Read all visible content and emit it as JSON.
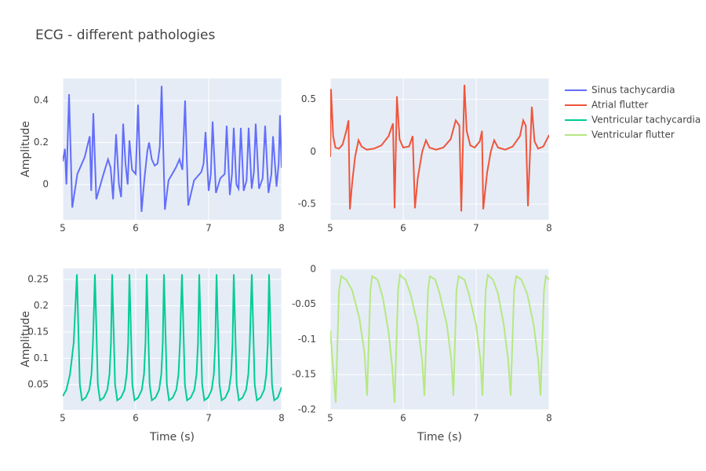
{
  "title": "ECG - different pathologies",
  "legend": "right",
  "chart_data": [
    {
      "type": "line",
      "y_label": "Amplitude",
      "xlim": [
        5,
        8
      ],
      "xticks": [
        5,
        6,
        7,
        8
      ],
      "ylim": [
        -0.168,
        0.505
      ],
      "yticks": [
        0,
        0.2,
        0.4
      ],
      "grid": true,
      "series": [
        {
          "name": "Sinus tachycardia",
          "color": "#636efa",
          "x": [
            5.0,
            5.03,
            5.05,
            5.086,
            5.13,
            5.2,
            5.3,
            5.37,
            5.39,
            5.419,
            5.46,
            5.55,
            5.62,
            5.656,
            5.69,
            5.731,
            5.77,
            5.8,
            5.828,
            5.86,
            5.89,
            5.914,
            5.95,
            6.0,
            6.032,
            6.08,
            6.12,
            6.16,
            6.183,
            6.22,
            6.26,
            6.3,
            6.33,
            6.355,
            6.4,
            6.45,
            6.55,
            6.6,
            6.64,
            6.677,
            6.72,
            6.8,
            6.9,
            6.93,
            6.957,
            7.0,
            7.03,
            7.054,
            7.1,
            7.16,
            7.22,
            7.247,
            7.29,
            7.32,
            7.344,
            7.38,
            7.41,
            7.441,
            7.48,
            7.52,
            7.548,
            7.59,
            7.62,
            7.645,
            7.69,
            7.74,
            7.774,
            7.82,
            7.86,
            7.882,
            7.93,
            7.96,
            7.978,
            8.0
          ],
          "values": [
            0.11,
            0.17,
            0.0,
            0.43,
            -0.11,
            0.05,
            0.13,
            0.23,
            -0.03,
            0.34,
            -0.07,
            0.04,
            0.12,
            0.08,
            -0.07,
            0.24,
            0.0,
            -0.06,
            0.29,
            0.1,
            0.0,
            0.21,
            0.07,
            0.05,
            0.38,
            -0.13,
            0.03,
            0.16,
            0.2,
            0.12,
            0.09,
            0.1,
            0.18,
            0.47,
            -0.12,
            0.02,
            0.08,
            0.12,
            0.07,
            0.4,
            -0.1,
            0.02,
            0.06,
            0.1,
            0.25,
            -0.03,
            0.05,
            0.3,
            -0.04,
            0.03,
            0.05,
            0.28,
            -0.05,
            0.05,
            0.27,
            0.0,
            -0.02,
            0.27,
            -0.03,
            0.02,
            0.27,
            -0.02,
            0.06,
            0.29,
            -0.02,
            0.03,
            0.28,
            -0.04,
            0.05,
            0.23,
            -0.01,
            0.1,
            0.33,
            0.08
          ]
        }
      ]
    },
    {
      "type": "line",
      "xlim": [
        5,
        8
      ],
      "xticks": [
        5,
        6,
        7,
        8
      ],
      "ylim": [
        -0.65,
        0.7
      ],
      "yticks": [
        -0.5,
        0,
        0.5
      ],
      "grid": true,
      "series": [
        {
          "name": "Atrial flutter",
          "color": "#ef553b",
          "x": [
            5.0,
            5.01,
            5.04,
            5.07,
            5.12,
            5.17,
            5.22,
            5.25,
            5.269,
            5.3,
            5.34,
            5.387,
            5.43,
            5.5,
            5.6,
            5.7,
            5.8,
            5.86,
            5.882,
            5.914,
            5.95,
            6.0,
            6.08,
            6.13,
            6.161,
            6.2,
            6.26,
            6.312,
            6.36,
            6.45,
            6.55,
            6.65,
            6.72,
            6.77,
            6.796,
            6.839,
            6.87,
            6.92,
            6.98,
            7.05,
            7.08,
            7.097,
            7.15,
            7.2,
            7.247,
            7.3,
            7.4,
            7.5,
            7.6,
            7.645,
            7.68,
            7.71,
            7.763,
            7.8,
            7.85,
            7.92,
            8.0
          ],
          "values": [
            -0.05,
            0.6,
            0.15,
            0.04,
            0.03,
            0.07,
            0.2,
            0.3,
            -0.55,
            -0.3,
            -0.05,
            0.11,
            0.05,
            0.02,
            0.03,
            0.06,
            0.15,
            0.27,
            -0.54,
            0.53,
            0.12,
            0.04,
            0.05,
            0.15,
            -0.54,
            -0.25,
            0.0,
            0.11,
            0.04,
            0.02,
            0.04,
            0.12,
            0.3,
            0.25,
            -0.57,
            0.64,
            0.2,
            0.06,
            0.04,
            0.1,
            0.2,
            -0.55,
            -0.2,
            0.0,
            0.11,
            0.04,
            0.02,
            0.05,
            0.15,
            0.3,
            0.25,
            -0.52,
            0.43,
            0.1,
            0.03,
            0.05,
            0.16
          ]
        }
      ]
    },
    {
      "type": "line",
      "x_label": "Time (s)",
      "y_label": "Amplitude",
      "xlim": [
        5,
        8
      ],
      "xticks": [
        5,
        6,
        7,
        8
      ],
      "ylim": [
        0.002,
        0.271
      ],
      "yticks": [
        0.05,
        0.1,
        0.15,
        0.2,
        0.25
      ],
      "grid": true,
      "series": [
        {
          "name": "Ventricular tachycardia",
          "color": "#00cc96",
          "x": [
            5.0,
            5.05,
            5.1,
            5.15,
            5.194,
            5.234,
            5.264,
            5.314,
            5.364,
            5.394,
            5.414,
            5.441,
            5.481,
            5.511,
            5.561,
            5.611,
            5.641,
            5.661,
            5.677,
            5.717,
            5.747,
            5.797,
            5.847,
            5.877,
            5.897,
            5.914,
            5.954,
            5.984,
            6.034,
            6.084,
            6.114,
            6.134,
            6.151,
            6.191,
            6.221,
            6.271,
            6.321,
            6.351,
            6.371,
            6.387,
            6.427,
            6.457,
            6.507,
            6.557,
            6.587,
            6.607,
            6.634,
            6.674,
            6.704,
            6.754,
            6.804,
            6.834,
            6.854,
            6.871,
            6.911,
            6.941,
            6.991,
            7.041,
            7.071,
            7.091,
            7.108,
            7.148,
            7.178,
            7.228,
            7.278,
            7.308,
            7.328,
            7.344,
            7.384,
            7.414,
            7.464,
            7.514,
            7.544,
            7.564,
            7.591,
            7.631,
            7.661,
            7.711,
            7.761,
            7.791,
            7.811,
            7.828,
            7.868,
            7.898,
            7.948,
            8.0
          ],
          "values": [
            0.028,
            0.04,
            0.07,
            0.13,
            0.26,
            0.05,
            0.02,
            0.025,
            0.04,
            0.07,
            0.13,
            0.26,
            0.05,
            0.02,
            0.025,
            0.04,
            0.07,
            0.13,
            0.26,
            0.05,
            0.02,
            0.025,
            0.04,
            0.07,
            0.13,
            0.26,
            0.05,
            0.02,
            0.025,
            0.04,
            0.07,
            0.13,
            0.26,
            0.05,
            0.02,
            0.025,
            0.04,
            0.07,
            0.13,
            0.26,
            0.05,
            0.02,
            0.025,
            0.04,
            0.07,
            0.13,
            0.26,
            0.05,
            0.02,
            0.025,
            0.04,
            0.07,
            0.13,
            0.26,
            0.05,
            0.02,
            0.025,
            0.04,
            0.07,
            0.13,
            0.26,
            0.05,
            0.02,
            0.025,
            0.04,
            0.07,
            0.13,
            0.26,
            0.05,
            0.02,
            0.025,
            0.04,
            0.07,
            0.13,
            0.26,
            0.05,
            0.02,
            0.025,
            0.04,
            0.07,
            0.13,
            0.26,
            0.05,
            0.02,
            0.025,
            0.045
          ]
        }
      ]
    },
    {
      "type": "line",
      "x_label": "Time (s)",
      "xlim": [
        5,
        8
      ],
      "xticks": [
        5,
        6,
        7,
        8
      ],
      "ylim": [
        -0.2,
        0.001
      ],
      "yticks": [
        -0.2,
        -0.15,
        -0.1,
        -0.05,
        0
      ],
      "grid": true,
      "series": [
        {
          "name": "Ventricular flutter",
          "color": "#b6e880",
          "x": [
            5.0,
            5.075,
            5.12,
            5.15,
            5.22,
            5.3,
            5.4,
            5.47,
            5.505,
            5.55,
            5.575,
            5.65,
            5.72,
            5.8,
            5.85,
            5.882,
            5.93,
            5.955,
            6.03,
            6.1,
            6.2,
            6.26,
            6.29,
            6.34,
            6.365,
            6.44,
            6.5,
            6.6,
            6.66,
            6.688,
            6.73,
            6.76,
            6.84,
            6.9,
            7.0,
            7.06,
            7.086,
            7.13,
            7.16,
            7.23,
            7.3,
            7.38,
            7.44,
            7.473,
            7.52,
            7.55,
            7.62,
            7.7,
            7.79,
            7.85,
            7.882,
            7.93,
            7.955,
            8.0
          ],
          "values": [
            -0.087,
            -0.19,
            -0.03,
            -0.01,
            -0.015,
            -0.03,
            -0.07,
            -0.12,
            -0.18,
            -0.03,
            -0.01,
            -0.015,
            -0.04,
            -0.09,
            -0.14,
            -0.19,
            -0.03,
            -0.008,
            -0.015,
            -0.035,
            -0.08,
            -0.13,
            -0.18,
            -0.03,
            -0.01,
            -0.015,
            -0.035,
            -0.08,
            -0.13,
            -0.18,
            -0.03,
            -0.01,
            -0.015,
            -0.035,
            -0.08,
            -0.13,
            -0.18,
            -0.03,
            -0.008,
            -0.015,
            -0.035,
            -0.08,
            -0.13,
            -0.18,
            -0.03,
            -0.01,
            -0.015,
            -0.035,
            -0.08,
            -0.13,
            -0.18,
            -0.03,
            -0.01,
            -0.015
          ]
        }
      ]
    }
  ]
}
